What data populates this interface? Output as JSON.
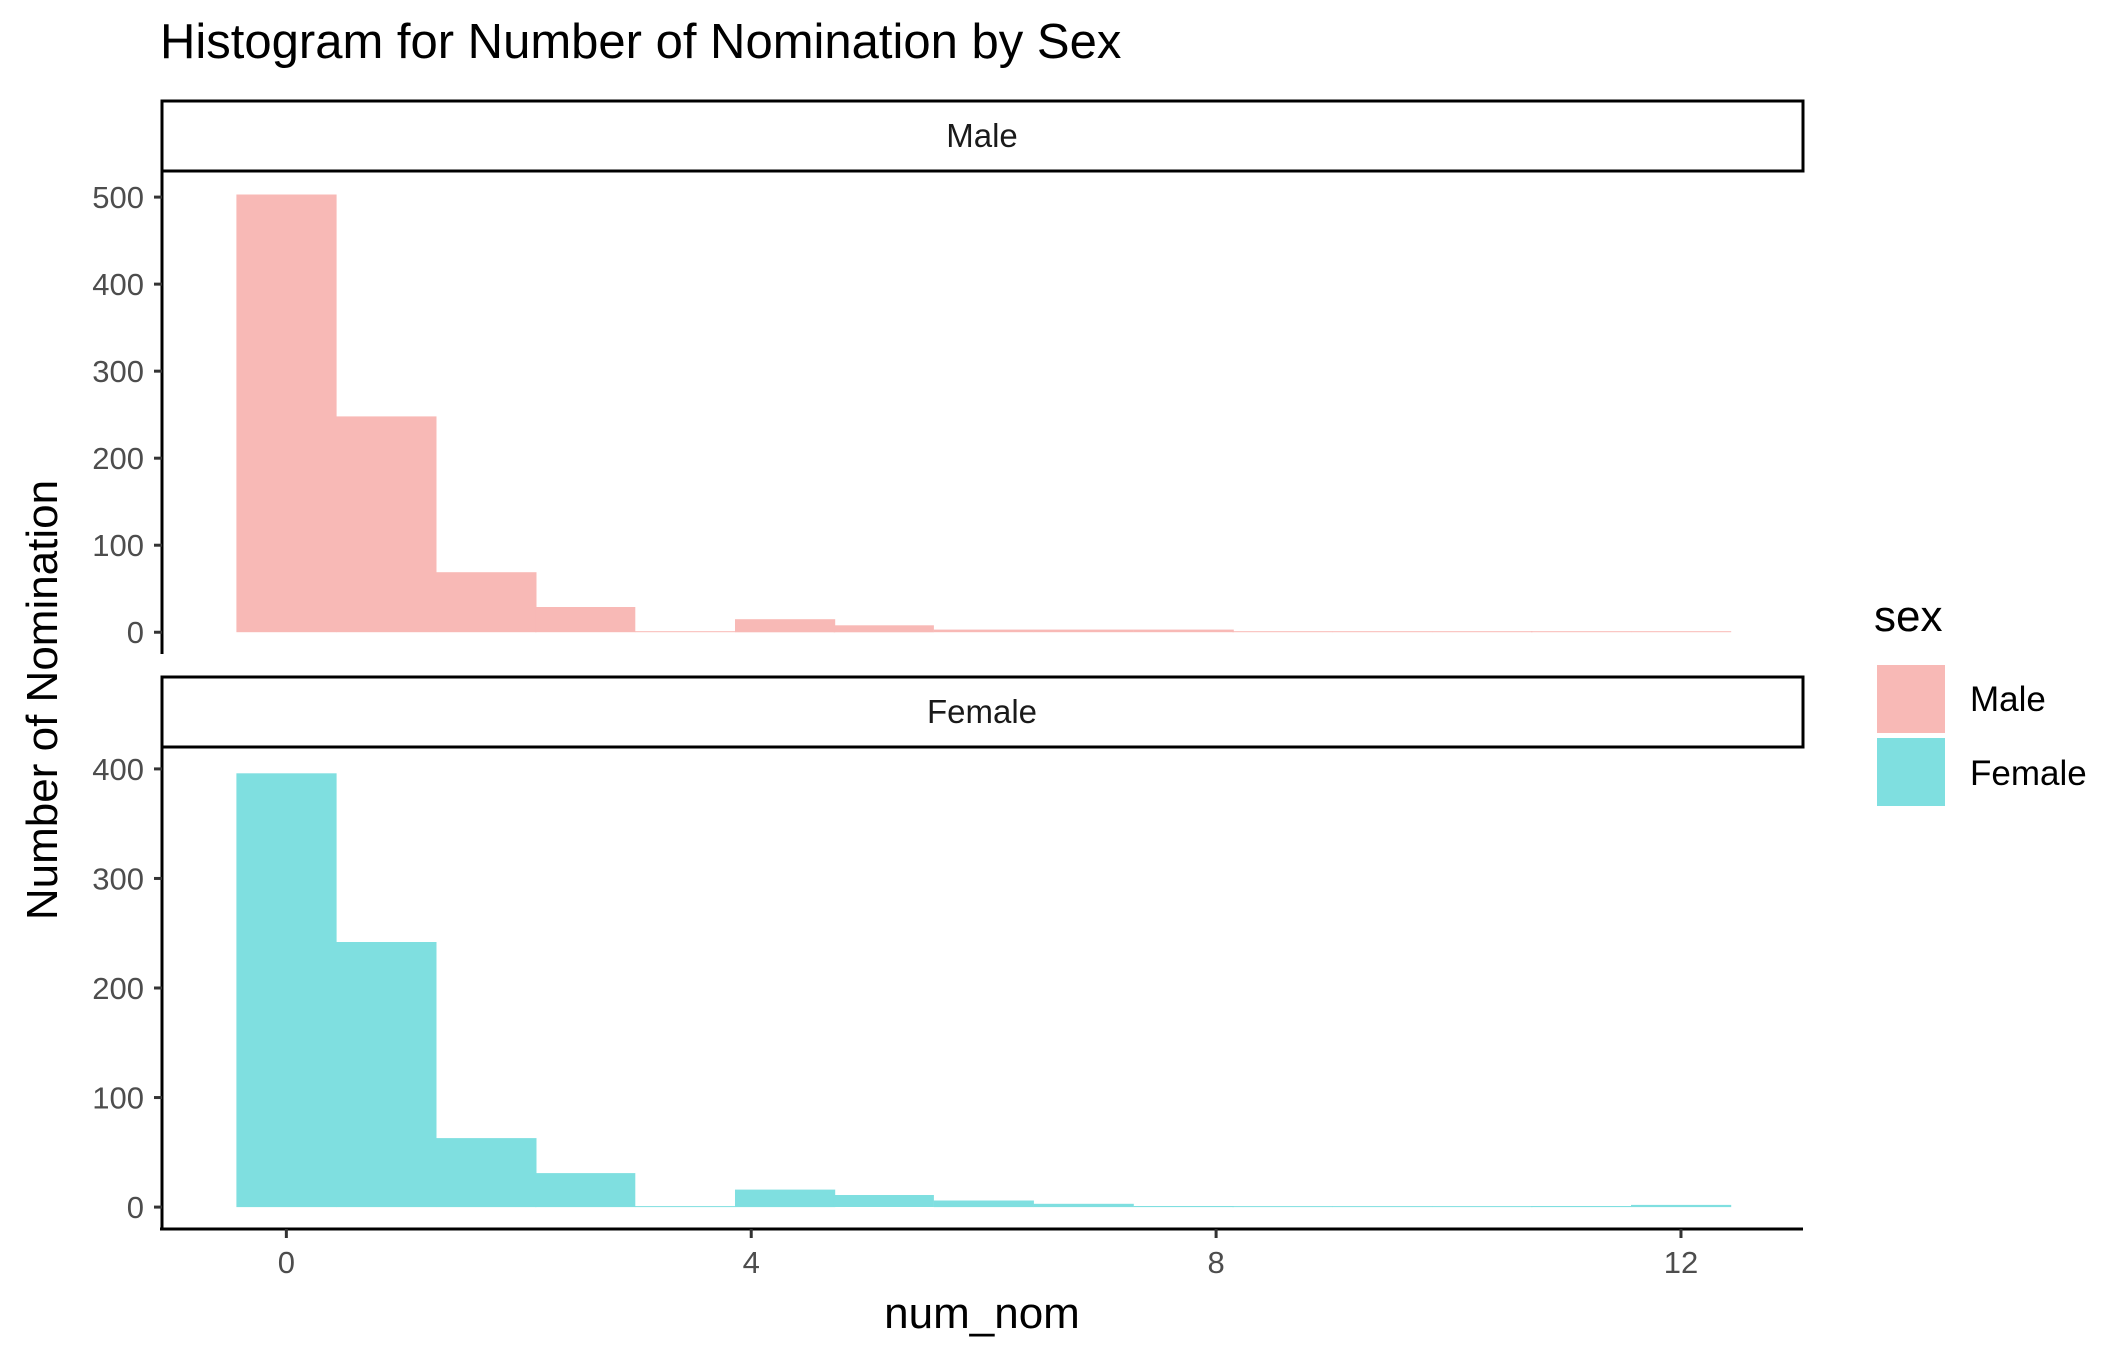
{
  "chart_data": {
    "type": "bar",
    "title": "Histogram for Number of Nomination by Sex",
    "xlabel": "num_nom",
    "ylabel": "Number of Nomination",
    "legend": {
      "title": "sex",
      "position": "right",
      "items": [
        {
          "label": "Male",
          "color": "#F8B9B6"
        },
        {
          "label": "Female",
          "color": "#7FDFE0"
        }
      ]
    },
    "x_ticks": [
      0,
      4,
      8,
      12
    ],
    "x_range": [
      -1.07,
      13.05
    ],
    "bin_width": 0.857,
    "bin_starts": [
      -0.43,
      0.43,
      1.29,
      2.14,
      3.0,
      3.86,
      4.71,
      5.57,
      6.43,
      7.29,
      8.14,
      9.0,
      9.86,
      10.71,
      11.57
    ],
    "panels": [
      {
        "name": "Male",
        "color": "#F8B9B6",
        "y_ticks": [
          0,
          100,
          200,
          300,
          400,
          500
        ],
        "y_range": [
          -25,
          530
        ],
        "values": [
          503,
          248,
          69,
          29,
          0,
          15,
          8,
          3,
          3,
          3,
          1,
          0,
          1,
          1,
          0
        ]
      },
      {
        "name": "Female",
        "color": "#7FDFE0",
        "y_ticks": [
          0,
          100,
          200,
          300,
          400
        ],
        "y_range": [
          -20,
          420
        ],
        "values": [
          396,
          242,
          63,
          31,
          0,
          16,
          11,
          6,
          3,
          1,
          0,
          0,
          0,
          1,
          2
        ]
      }
    ]
  }
}
